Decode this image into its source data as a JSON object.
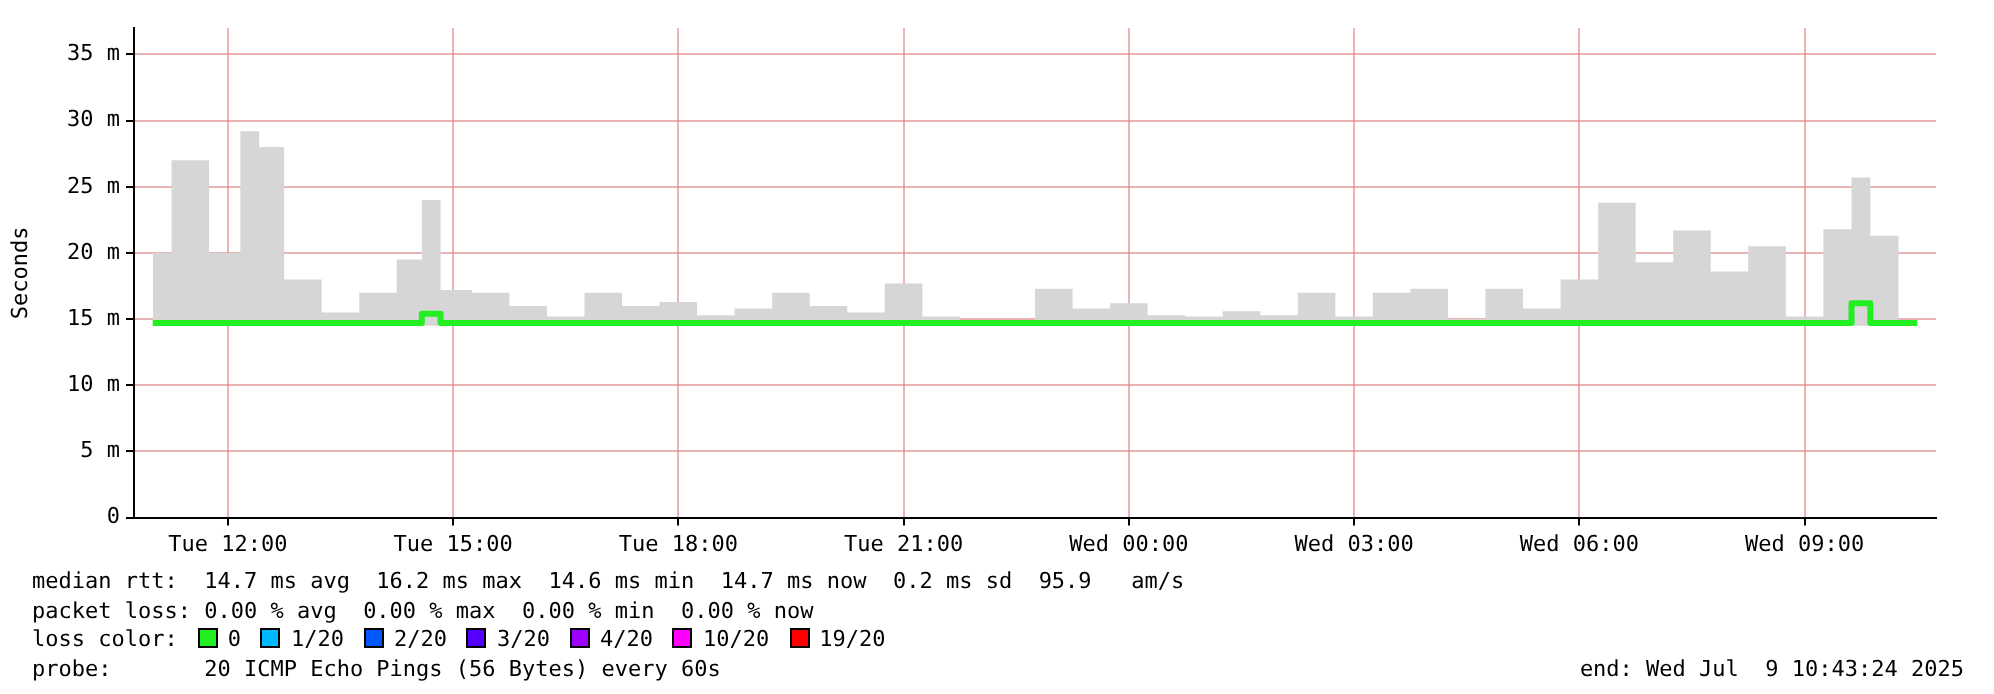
{
  "chart_data": {
    "type": "line",
    "ylabel": "Seconds",
    "x": [
      "2025-07-08T11:00",
      "2025-07-08T11:30",
      "2025-07-08T12:00",
      "2025-07-08T12:20",
      "2025-07-08T12:30",
      "2025-07-08T13:00",
      "2025-07-08T13:30",
      "2025-07-08T14:00",
      "2025-07-08T14:30",
      "2025-07-08T14:40",
      "2025-07-08T15:00",
      "2025-07-08T15:30",
      "2025-07-08T16:00",
      "2025-07-08T16:30",
      "2025-07-08T17:00",
      "2025-07-08T17:30",
      "2025-07-08T18:00",
      "2025-07-08T18:30",
      "2025-07-08T19:00",
      "2025-07-08T19:30",
      "2025-07-08T20:00",
      "2025-07-08T20:30",
      "2025-07-08T21:00",
      "2025-07-08T21:30",
      "2025-07-08T22:00",
      "2025-07-08T22:30",
      "2025-07-08T23:00",
      "2025-07-08T23:30",
      "2025-07-09T00:00",
      "2025-07-09T00:30",
      "2025-07-09T01:00",
      "2025-07-09T01:30",
      "2025-07-09T02:00",
      "2025-07-09T02:30",
      "2025-07-09T03:00",
      "2025-07-09T03:30",
      "2025-07-09T04:00",
      "2025-07-09T04:30",
      "2025-07-09T05:00",
      "2025-07-09T05:30",
      "2025-07-09T06:00",
      "2025-07-09T06:30",
      "2025-07-09T07:00",
      "2025-07-09T07:30",
      "2025-07-09T08:00",
      "2025-07-09T08:30",
      "2025-07-09T09:00",
      "2025-07-09T09:30",
      "2025-07-09T09:45",
      "2025-07-09T10:00",
      "2025-07-09T10:30"
    ],
    "series": [
      {
        "color": "#22ee22",
        "values": [
          14.7,
          14.7,
          14.7,
          14.7,
          14.7,
          14.7,
          14.7,
          14.7,
          14.7,
          15.4,
          14.7,
          14.7,
          14.7,
          14.7,
          14.7,
          14.7,
          14.7,
          14.7,
          14.7,
          14.7,
          14.7,
          14.7,
          14.7,
          14.7,
          14.7,
          14.7,
          14.7,
          14.7,
          14.7,
          14.7,
          14.7,
          14.7,
          14.7,
          14.7,
          14.7,
          14.7,
          14.7,
          14.7,
          14.7,
          14.7,
          14.7,
          14.7,
          14.7,
          14.7,
          14.7,
          14.7,
          14.7,
          14.7,
          16.2,
          14.7,
          14.7
        ],
        "lower": [
          14.5,
          14.5,
          14.5,
          14.5,
          14.5,
          14.5,
          14.5,
          14.5,
          14.5,
          14.5,
          14.5,
          14.5,
          14.5,
          14.5,
          14.5,
          14.5,
          14.5,
          14.5,
          14.5,
          14.5,
          14.5,
          14.5,
          14.5,
          14.5,
          14.5,
          14.5,
          14.5,
          14.5,
          14.5,
          14.5,
          14.5,
          14.5,
          14.5,
          14.5,
          14.5,
          14.5,
          14.5,
          14.5,
          14.5,
          14.5,
          14.5,
          14.5,
          14.5,
          14.5,
          14.5,
          14.5,
          14.5,
          14.5,
          14.5,
          14.5,
          14.5
        ],
        "upper": [
          20,
          27,
          20,
          29.2,
          28,
          18,
          15.5,
          17,
          19.5,
          24,
          17.2,
          17,
          16,
          15.2,
          17,
          16,
          16.3,
          15.3,
          15.8,
          17,
          16,
          15.5,
          17.7,
          15.2,
          14.8,
          14.9,
          17.3,
          15.8,
          16.2,
          15.3,
          15.2,
          15.6,
          15.3,
          17,
          15.2,
          17,
          17.3,
          15,
          17.3,
          15.8,
          18,
          23.8,
          19.3,
          21.7,
          18.6,
          20.5,
          15.2,
          21.8,
          25.7,
          21.3,
          14.8
        ]
      }
    ],
    "xlim": [
      "2025-07-08T10:45",
      "2025-07-09T10:45"
    ],
    "xticks": [
      {
        "value": "2025-07-08T12:00",
        "label": "Tue 12:00"
      },
      {
        "value": "2025-07-08T15:00",
        "label": "Tue 15:00"
      },
      {
        "value": "2025-07-08T18:00",
        "label": "Tue 18:00"
      },
      {
        "value": "2025-07-08T21:00",
        "label": "Tue 21:00"
      },
      {
        "value": "2025-07-09T00:00",
        "label": "Wed 00:00"
      },
      {
        "value": "2025-07-09T03:00",
        "label": "Wed 03:00"
      },
      {
        "value": "2025-07-09T06:00",
        "label": "Wed 06:00"
      },
      {
        "value": "2025-07-09T09:00",
        "label": "Wed 09:00"
      }
    ],
    "ylim": [
      0,
      37
    ],
    "yticks": [
      0,
      {
        "value": 5,
        "label": "5 m"
      },
      {
        "value": 10,
        "label": "10 m"
      },
      {
        "value": 15,
        "label": "15 m"
      },
      {
        "value": 20,
        "label": "20 m"
      },
      {
        "value": 25,
        "label": "25 m"
      },
      {
        "value": 30,
        "label": "30 m"
      },
      {
        "value": 35,
        "label": "35 m"
      }
    ],
    "grid": true,
    "line_style": "solid",
    "annotations": [
      "median rtt:  14.7 ms avg  16.2 ms max  14.6 ms min  14.7 ms now  0.2 ms sd  95.9   am/s",
      "packet loss: 0.00 % avg  0.00 % max  0.00 % min  0.00 % now",
      "loss color:",
      "0",
      "1/20",
      "2/20",
      "3/20",
      "4/20",
      "10/20",
      "19/20",
      "probe:       20 ICMP Echo Pings (56 Bytes) every 60s",
      "end: Wed Jul  9 10:43:24 2025"
    ]
  }
}
